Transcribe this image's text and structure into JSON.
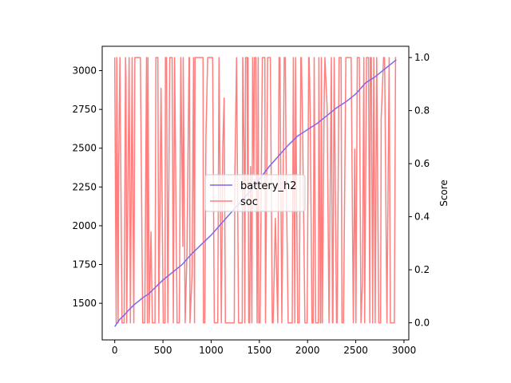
{
  "chart_data": {
    "type": "line",
    "title": "",
    "xlabel": "",
    "ylabel_left": "",
    "ylabel_right": "Score",
    "xlim": [
      -130,
      3050
    ],
    "ylim_left": [
      1264,
      3157
    ],
    "ylim_right": [
      -0.0645,
      1.0425
    ],
    "x_ticks": [
      0,
      500,
      1000,
      1500,
      2000,
      2500,
      3000
    ],
    "x_tick_labels": [
      "0",
      "500",
      "1000",
      "1500",
      "2000",
      "2500",
      "3000"
    ],
    "y_left_ticks": [
      1500,
      1750,
      2000,
      2250,
      2500,
      2750,
      3000
    ],
    "y_left_tick_labels": [
      "1500",
      "1750",
      "2000",
      "2250",
      "2500",
      "2750",
      "3000"
    ],
    "y_right_ticks": [
      0.0,
      0.2,
      0.4,
      0.6,
      0.8,
      1.0
    ],
    "y_right_tick_labels": [
      "0.0",
      "0.2",
      "0.4",
      "0.6",
      "0.8",
      "1.0"
    ],
    "legend_position": "center",
    "series": [
      {
        "name": "battery_h2",
        "axis": "left",
        "color": "#7b68ee",
        "x": [
          0,
          50,
          100,
          150,
          200,
          250,
          300,
          350,
          400,
          450,
          500,
          600,
          700,
          800,
          900,
          1000,
          1100,
          1200,
          1300,
          1400,
          1500,
          1600,
          1700,
          1800,
          1900,
          2000,
          2100,
          2200,
          2300,
          2400,
          2500,
          2600,
          2700,
          2800,
          2920
        ],
        "values": [
          1350,
          1395,
          1425,
          1460,
          1490,
          1515,
          1540,
          1560,
          1590,
          1620,
          1650,
          1700,
          1750,
          1820,
          1880,
          1940,
          2010,
          2080,
          2150,
          2220,
          2300,
          2380,
          2450,
          2520,
          2580,
          2620,
          2660,
          2710,
          2760,
          2800,
          2850,
          2920,
          2960,
          3010,
          3070
        ]
      },
      {
        "name": "soc",
        "axis": "right",
        "color": "#ff7f7f",
        "pattern": "oscillating between 0 and 1 over x range 0-2920"
      }
    ]
  }
}
